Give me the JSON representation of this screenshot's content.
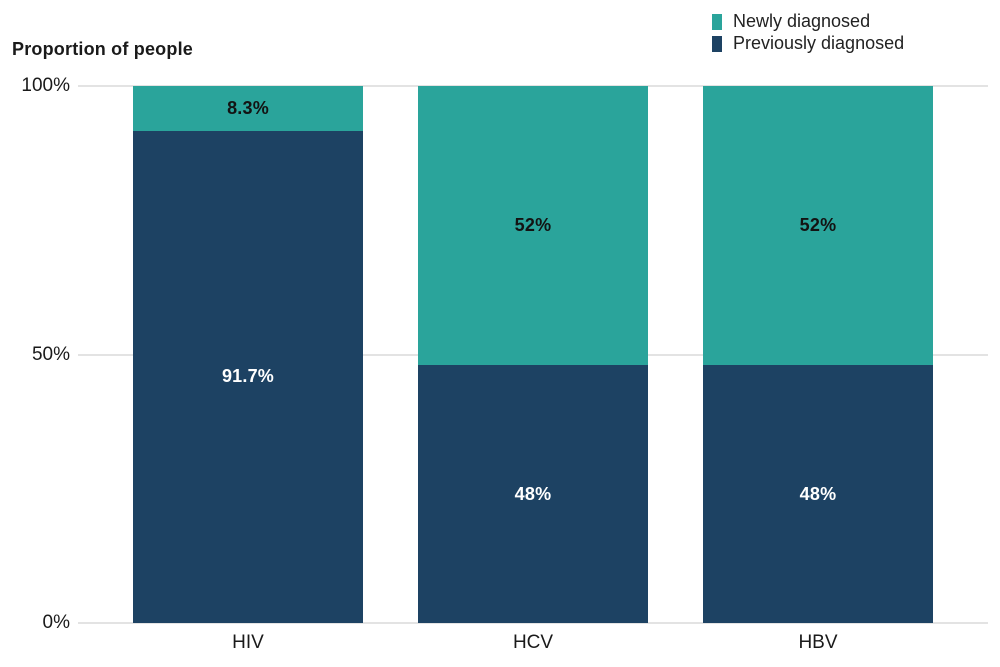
{
  "title": "Proportion of people",
  "legend": {
    "items": [
      {
        "label": "Newly diagnosed",
        "color": "#2aa49b"
      },
      {
        "label": "Previously diagnosed",
        "color": "#1d4263"
      }
    ]
  },
  "chart_data": {
    "type": "bar",
    "stacked": true,
    "stack_total": 100,
    "title": "Proportion of people",
    "xlabel": "",
    "ylabel": "Proportion of people",
    "unit": "%",
    "categories": [
      "HIV",
      "HCV",
      "HBV"
    ],
    "series": [
      {
        "name": "Newly diagnosed",
        "color": "#2aa49b",
        "values": [
          8.3,
          52,
          52
        ],
        "data_labels": [
          "8.3%",
          "52%",
          "52%"
        ],
        "label_color": "#131313"
      },
      {
        "name": "Previously diagnosed",
        "color": "#1d4263",
        "values": [
          91.7,
          48,
          48
        ],
        "data_labels": [
          "91.7%",
          "48%",
          "48%"
        ],
        "label_color": "#ffffff"
      }
    ],
    "ylim": [
      0,
      100
    ],
    "y_ticks": [
      {
        "value": 100,
        "label": "100%"
      },
      {
        "value": 50,
        "label": "50%"
      },
      {
        "value": 0,
        "label": "0%"
      }
    ],
    "grid": true,
    "gridline_color": "#e3e3e3",
    "legend_position": "top-right"
  }
}
